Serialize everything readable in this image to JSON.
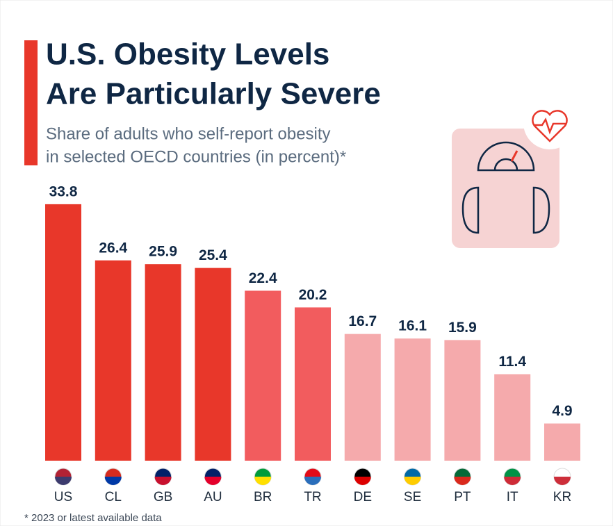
{
  "chart_data": {
    "type": "bar",
    "title": [
      "U.S. Obesity Levels",
      "Are Particularly Severe"
    ],
    "subtitle": [
      "Share of adults who self-report obesity",
      "in selected OECD countries (in percent)*"
    ],
    "categories": [
      "US",
      "CL",
      "GB",
      "AU",
      "BR",
      "TR",
      "DE",
      "SE",
      "PT",
      "IT",
      "KR"
    ],
    "values": [
      33.8,
      26.4,
      25.9,
      25.4,
      22.4,
      20.2,
      16.7,
      16.1,
      15.9,
      11.4,
      4.9
    ],
    "colors": [
      "#e8372a",
      "#e8372a",
      "#e8372a",
      "#e8372a",
      "#f25c5e",
      "#f25c5e",
      "#f5aaac",
      "#f5aaac",
      "#f5aaac",
      "#f5aaac",
      "#f5aaac"
    ],
    "footnote": "* 2023 or latest available data"
  }
}
